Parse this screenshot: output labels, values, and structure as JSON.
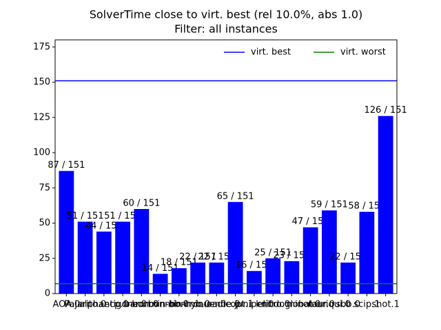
{
  "chart_data": {
    "type": "bar",
    "title": "SolverTime close to virt. best (rel 10.0%, abs 1.0)",
    "subtitle": "Filter: all instances",
    "categories": [
      "AOA.0",
      "Pajarito.0",
      "alphaecp.0",
      "antigone.0",
      "baron.0",
      "bonmin-bb.0",
      "bonmin-hyb.0",
      "bonmin-oa.0",
      "couenne.0",
      "dicopt.1",
      "juniper.0",
      "knitro.0",
      "lindoglobal.0",
      "minotaur.0",
      "muriqui.0",
      "sbb.0",
      "scip.1",
      "shot.1"
    ],
    "values": [
      87,
      51,
      44,
      51,
      60,
      14,
      18,
      22,
      22,
      65,
      16,
      25,
      23,
      47,
      59,
      22,
      58,
      126
    ],
    "value_labels": [
      "87 / 151",
      "51 / 151",
      "44 / 151",
      "51 / 151",
      "60 / 151",
      "14 / 151",
      "18 / 151",
      "22 / 151",
      "22 / 151",
      "65 / 151",
      "16 / 151",
      "25 / 151",
      "23 / 151",
      "47 / 151",
      "59 / 151",
      "22 / 151",
      "58 / 151",
      "126 / 151"
    ],
    "color": "#0000ff",
    "reference_lines": [
      {
        "name": "virt. best",
        "value": 151,
        "color": "#0000ff"
      },
      {
        "name": "virt. worst",
        "value": 7,
        "color": "#008000"
      }
    ],
    "legend": "upper right",
    "ylim": [
      0,
      180
    ],
    "yticks": [
      0,
      25,
      50,
      75,
      100,
      125,
      150,
      175
    ]
  }
}
